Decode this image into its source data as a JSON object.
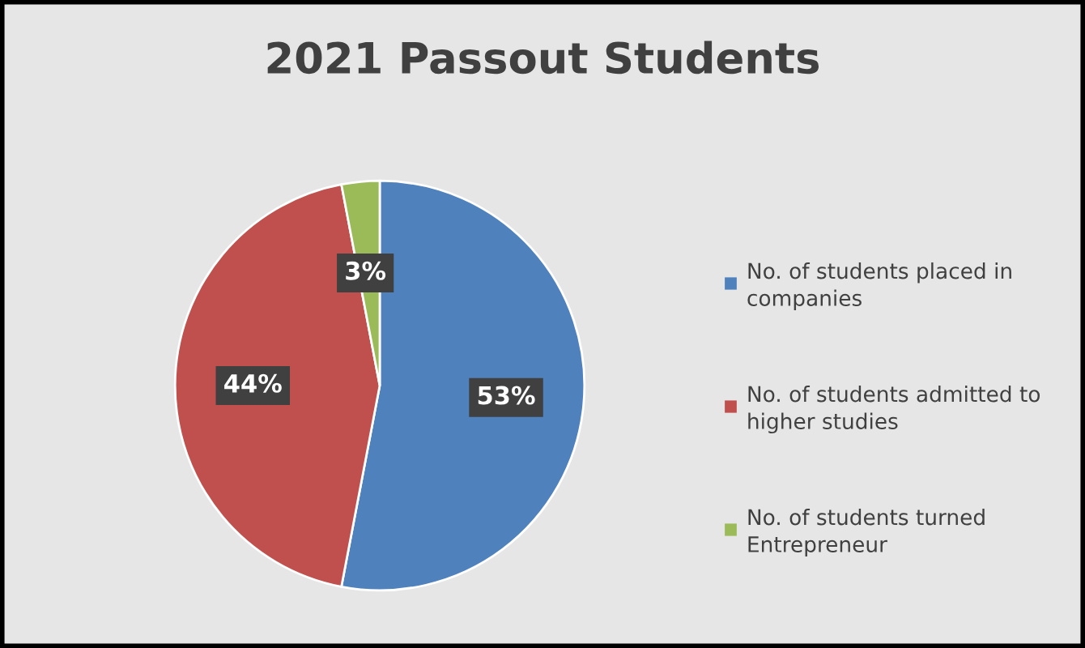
{
  "chart_data": {
    "type": "pie",
    "title": "2021 Passout Students",
    "categories": [
      "No. of students placed in companies",
      "No. of students admitted to higher studies",
      "No. of students turned Entrepreneur"
    ],
    "values": [
      53,
      44,
      3
    ],
    "colors": [
      "#4f81bd",
      "#c0504d",
      "#9bbb59"
    ],
    "value_labels": [
      "53%",
      "44%",
      "3%"
    ],
    "legend": "right"
  }
}
